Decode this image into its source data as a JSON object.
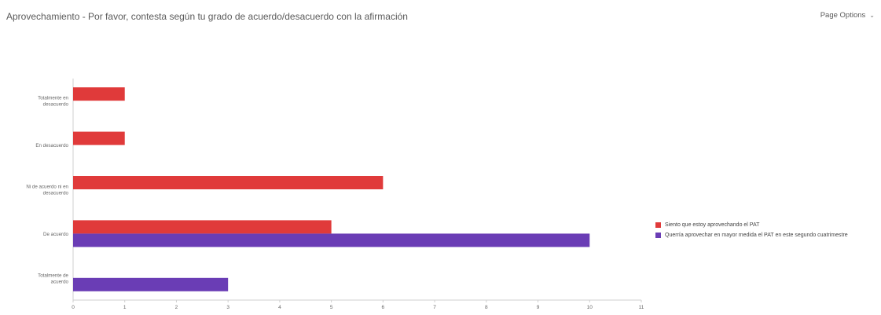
{
  "header": {
    "title": "Aprovechamiento - Por favor, contesta según tu grado de acuerdo/desacuerdo con la afirmación",
    "page_options_label": "Page Options"
  },
  "colors": {
    "series_1": "#e03a3a",
    "series_2": "#6a3db5",
    "axis": "#cfcfcf",
    "tick_text": "#666666"
  },
  "chart_data": {
    "type": "bar",
    "orientation": "horizontal",
    "categories": [
      [
        "Totalmente en",
        "desacuerdo"
      ],
      [
        "En desacuerdo"
      ],
      [
        "Ni de acuerdo ni en",
        "desacuerdo"
      ],
      [
        "De acuerdo"
      ],
      [
        "Totalmente de",
        "acuerdo"
      ]
    ],
    "series": [
      {
        "name": "Siento que estoy aprovechando el PAT",
        "color": "#e03a3a",
        "values": [
          1,
          1,
          6,
          5,
          0
        ]
      },
      {
        "name": "Querría aprovechar en mayor medida el PAT en este segundo cuatrimestre",
        "color": "#6a3db5",
        "values": [
          0,
          0,
          0,
          10,
          3
        ]
      }
    ],
    "xlim": [
      0,
      11
    ],
    "xticks": [
      0,
      1,
      2,
      3,
      4,
      5,
      6,
      7,
      8,
      9,
      10,
      11
    ],
    "legend_position": "right",
    "grid": false,
    "title": "",
    "xlabel": "",
    "ylabel": ""
  }
}
